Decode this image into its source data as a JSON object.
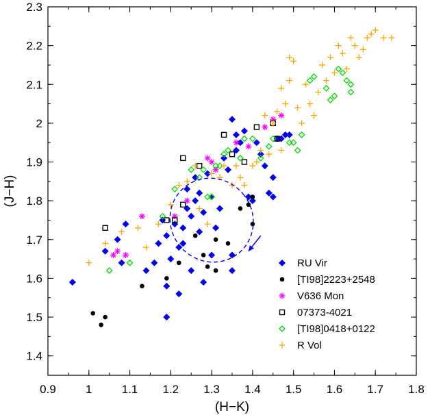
{
  "chart_data": {
    "type": "scatter",
    "title": "",
    "xlabel": "(H−K)",
    "ylabel": "(J−H)",
    "xlim": [
      0.9,
      1.8
    ],
    "ylim": [
      1.35,
      2.3
    ],
    "xticks": [
      "0.9",
      "1",
      "1.1",
      "1.2",
      "1.3",
      "1.4",
      "1.5",
      "1.6",
      "1.7",
      "1.8"
    ],
    "yticks": [
      "1.4",
      "1.5",
      "1.6",
      "1.7",
      "1.8",
      "1.9",
      "2",
      "2.1",
      "2.2",
      "2.3"
    ],
    "legend_position": "bottom-right",
    "series": [
      {
        "name": "RU Vir",
        "marker": "diamond-filled",
        "color": "#0000ee",
        "points": [
          [
            0.96,
            1.59
          ],
          [
            1.04,
            1.67
          ],
          [
            1.07,
            1.7
          ],
          [
            1.08,
            1.64
          ],
          [
            1.09,
            1.74
          ],
          [
            1.14,
            1.62
          ],
          [
            1.16,
            1.64
          ],
          [
            1.17,
            1.69
          ],
          [
            1.18,
            1.75
          ],
          [
            1.19,
            1.71
          ],
          [
            1.19,
            1.58
          ],
          [
            1.19,
            1.5
          ],
          [
            1.2,
            1.65
          ],
          [
            1.21,
            1.74
          ],
          [
            1.22,
            1.68
          ],
          [
            1.22,
            1.56
          ],
          [
            1.23,
            1.69
          ],
          [
            1.23,
            1.73
          ],
          [
            1.24,
            1.83
          ],
          [
            1.24,
            1.78
          ],
          [
            1.25,
            1.62
          ],
          [
            1.25,
            1.76
          ],
          [
            1.26,
            1.8
          ],
          [
            1.26,
            1.86
          ],
          [
            1.27,
            1.82
          ],
          [
            1.27,
            1.72
          ],
          [
            1.28,
            1.59
          ],
          [
            1.28,
            1.77
          ],
          [
            1.29,
            1.87
          ],
          [
            1.3,
            1.66
          ],
          [
            1.3,
            1.81
          ],
          [
            1.31,
            1.73
          ],
          [
            1.32,
            1.78
          ],
          [
            1.33,
            1.91
          ],
          [
            1.34,
            1.88
          ],
          [
            1.35,
            1.62
          ],
          [
            1.35,
            1.66
          ],
          [
            1.35,
            2.01
          ],
          [
            1.36,
            1.93
          ],
          [
            1.36,
            1.97
          ],
          [
            1.37,
            1.95
          ],
          [
            1.38,
            1.98
          ],
          [
            1.39,
            1.81
          ],
          [
            1.4,
            1.8
          ],
          [
            1.41,
            1.95
          ],
          [
            1.42,
            1.92
          ],
          [
            1.43,
            1.89
          ],
          [
            1.44,
            1.82
          ],
          [
            1.45,
            1.81
          ],
          [
            1.45,
            1.86
          ],
          [
            1.46,
            1.96
          ],
          [
            1.47,
            1.96
          ],
          [
            1.48,
            1.97
          ],
          [
            1.49,
            1.97
          ]
        ]
      },
      {
        "name": "[TI98]2223+2548",
        "marker": "circle-filled",
        "color": "#000000",
        "points": [
          [
            1.01,
            1.51
          ],
          [
            1.03,
            1.48
          ],
          [
            1.04,
            1.5
          ],
          [
            1.13,
            1.58
          ],
          [
            1.19,
            1.6
          ],
          [
            1.22,
            1.64
          ],
          [
            1.26,
            1.71
          ],
          [
            1.28,
            1.66
          ],
          [
            1.29,
            1.63
          ],
          [
            1.31,
            1.7
          ],
          [
            1.31,
            1.62
          ],
          [
            1.34,
            1.69
          ],
          [
            1.37,
            1.78
          ],
          [
            1.39,
            1.79
          ],
          [
            1.4,
            1.81
          ],
          [
            1.4,
            1.74
          ]
        ]
      },
      {
        "name": "V636 Mon",
        "marker": "asterisk",
        "color": "#ff00ff",
        "points": [
          [
            1.06,
            1.66
          ],
          [
            1.07,
            1.67
          ],
          [
            1.09,
            1.66
          ],
          [
            1.13,
            1.76
          ],
          [
            1.21,
            1.76
          ],
          [
            1.24,
            1.8
          ],
          [
            1.29,
            1.91
          ],
          [
            1.3,
            1.9
          ],
          [
            1.31,
            1.88
          ],
          [
            1.36,
            1.95
          ],
          [
            1.39,
            1.94
          ],
          [
            1.43,
            1.99
          ],
          [
            1.45,
            2.01
          ],
          [
            1.47,
            2.02
          ]
        ]
      },
      {
        "name": "07373-4021",
        "marker": "square-open",
        "color": "#000000",
        "points": [
          [
            1.04,
            1.73
          ],
          [
            1.19,
            1.75
          ],
          [
            1.21,
            1.75
          ],
          [
            1.23,
            1.79
          ],
          [
            1.23,
            1.91
          ],
          [
            1.27,
            1.89
          ],
          [
            1.33,
            1.97
          ],
          [
            1.35,
            1.92
          ],
          [
            1.38,
            1.9
          ],
          [
            1.41,
            1.99
          ],
          [
            1.45,
            2.0
          ],
          [
            1.46,
            1.96
          ]
        ]
      },
      {
        "name": "[TI98]0418+0122",
        "marker": "diamond-open",
        "color": "#00dd00",
        "points": [
          [
            1.05,
            1.62
          ],
          [
            1.1,
            1.64
          ],
          [
            1.18,
            1.76
          ],
          [
            1.21,
            1.83
          ],
          [
            1.25,
            1.88
          ],
          [
            1.27,
            1.86
          ],
          [
            1.28,
            1.88
          ],
          [
            1.29,
            1.81
          ],
          [
            1.3,
            1.81
          ],
          [
            1.31,
            1.89
          ],
          [
            1.32,
            1.89
          ],
          [
            1.33,
            1.92
          ],
          [
            1.34,
            1.93
          ],
          [
            1.37,
            1.91
          ],
          [
            1.38,
            1.96
          ],
          [
            1.4,
            1.96
          ],
          [
            1.42,
            1.91
          ],
          [
            1.44,
            1.94
          ],
          [
            1.45,
            1.96
          ],
          [
            1.49,
            1.95
          ],
          [
            1.5,
            1.95
          ],
          [
            1.51,
            1.93
          ],
          [
            1.52,
            1.97
          ],
          [
            1.54,
            2.11
          ],
          [
            1.55,
            2.12
          ],
          [
            1.58,
            2.09
          ],
          [
            1.59,
            2.06
          ],
          [
            1.6,
            2.07
          ],
          [
            1.61,
            2.14
          ],
          [
            1.62,
            2.13
          ],
          [
            1.63,
            2.11
          ],
          [
            1.64,
            2.1
          ],
          [
            1.64,
            2.08
          ]
        ]
      },
      {
        "name": "R Vol",
        "marker": "plus",
        "color": "#ffa500",
        "points": [
          [
            1.0,
            1.64
          ],
          [
            1.04,
            1.69
          ],
          [
            1.08,
            1.72
          ],
          [
            1.12,
            1.73
          ],
          [
            1.14,
            1.68
          ],
          [
            1.17,
            1.74
          ],
          [
            1.2,
            1.79
          ],
          [
            1.22,
            1.84
          ],
          [
            1.24,
            1.85
          ],
          [
            1.26,
            1.89
          ],
          [
            1.27,
            1.78
          ],
          [
            1.29,
            1.74
          ],
          [
            1.3,
            1.87
          ],
          [
            1.32,
            1.86
          ],
          [
            1.33,
            1.89
          ],
          [
            1.35,
            1.84
          ],
          [
            1.36,
            1.89
          ],
          [
            1.37,
            1.86
          ],
          [
            1.38,
            1.84
          ],
          [
            1.4,
            1.89
          ],
          [
            1.41,
            1.9
          ],
          [
            1.42,
            1.93
          ],
          [
            1.43,
            2.02
          ],
          [
            1.44,
            1.92
          ],
          [
            1.45,
            2.0
          ],
          [
            1.46,
            2.03
          ],
          [
            1.47,
            1.93
          ],
          [
            1.47,
            2.09
          ],
          [
            1.48,
            2.05
          ],
          [
            1.49,
            2.11
          ],
          [
            1.49,
            2.17
          ],
          [
            1.5,
            2.16
          ],
          [
            1.51,
            2.04
          ],
          [
            1.52,
            2.0
          ],
          [
            1.53,
            2.1
          ],
          [
            1.54,
            2.05
          ],
          [
            1.55,
            2.02
          ],
          [
            1.56,
            2.08
          ],
          [
            1.57,
            2.15
          ],
          [
            1.58,
            2.11
          ],
          [
            1.59,
            2.17
          ],
          [
            1.6,
            2.13
          ],
          [
            1.61,
            2.2
          ],
          [
            1.62,
            2.18
          ],
          [
            1.63,
            2.14
          ],
          [
            1.64,
            2.22
          ],
          [
            1.65,
            2.2
          ],
          [
            1.66,
            2.17
          ],
          [
            1.67,
            2.19
          ],
          [
            1.68,
            2.22
          ],
          [
            1.69,
            2.23
          ],
          [
            1.7,
            2.24
          ],
          [
            1.72,
            2.22
          ],
          [
            1.74,
            2.22
          ]
        ]
      }
    ],
    "annotations": [
      {
        "kind": "dashed-ellipse",
        "color": "#0000ee",
        "center": [
          1.3,
          1.75
        ],
        "semi_axes": [
          0.1,
          0.11
        ],
        "rotation_deg": -40
      },
      {
        "kind": "arrow",
        "color": "#0000ee",
        "from": [
          1.42,
          1.71
        ],
        "to": [
          1.39,
          1.67
        ]
      }
    ]
  }
}
